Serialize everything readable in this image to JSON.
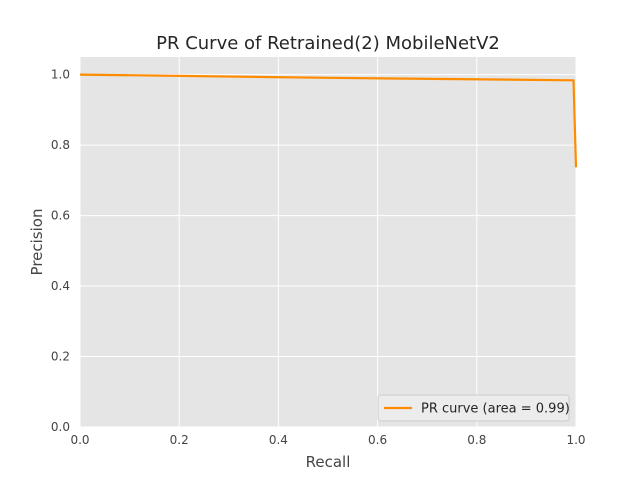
{
  "chart_data": {
    "type": "line",
    "title": "PR Curve of Retrained(2) MobileNetV2",
    "xlabel": "Recall",
    "ylabel": "Precision",
    "xlim": [
      0.0,
      1.0
    ],
    "ylim": [
      0.0,
      1.05
    ],
    "xticks": [
      0.0,
      0.2,
      0.4,
      0.6,
      0.8,
      1.0
    ],
    "yticks": [
      0.0,
      0.2,
      0.4,
      0.6,
      0.8,
      1.0
    ],
    "xtick_labels": [
      "0.0",
      "0.2",
      "0.4",
      "0.6",
      "0.8",
      "1.0"
    ],
    "ytick_labels": [
      "0.0",
      "0.2",
      "0.4",
      "0.6",
      "0.8",
      "1.0"
    ],
    "grid": true,
    "legend_position": "lower-right",
    "colors": {
      "plot_background": "#e5e5e5",
      "grid": "#ffffff",
      "series": "#ff8c00",
      "text": "#262626",
      "tick_text": "#444444"
    },
    "series": [
      {
        "name": "PR curve (area = 0.99)",
        "x": [
          0.0,
          0.5,
          0.995,
          1.0
        ],
        "y": [
          1.0,
          0.991,
          0.984,
          0.737
        ]
      }
    ]
  }
}
